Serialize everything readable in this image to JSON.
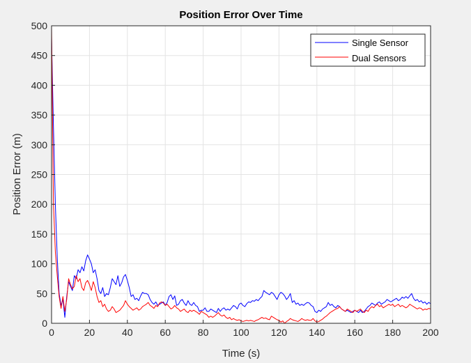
{
  "figure": {
    "background": "#f0f0f0",
    "axes_background": "#ffffff"
  },
  "chart_data": {
    "type": "line",
    "title": "Position Error Over Time",
    "xlabel": "Time (s)",
    "ylabel": "Position Error (m)",
    "xlim": [
      0,
      200
    ],
    "ylim": [
      0,
      500
    ],
    "xticks": [
      0,
      20,
      40,
      60,
      80,
      100,
      120,
      140,
      160,
      180,
      200
    ],
    "yticks": [
      0,
      50,
      100,
      150,
      200,
      250,
      300,
      350,
      400,
      450,
      500
    ],
    "grid": true,
    "legend_position": "top-right",
    "series": [
      {
        "name": "Single Sensor",
        "color": "#0000ff",
        "x": [
          0,
          1,
          2,
          3,
          4,
          5,
          6,
          7,
          8,
          9,
          10,
          11,
          12,
          13,
          14,
          15,
          16,
          17,
          18,
          19,
          20,
          21,
          22,
          23,
          24,
          25,
          26,
          27,
          28,
          29,
          30,
          31,
          32,
          33,
          34,
          35,
          36,
          37,
          38,
          39,
          40,
          41,
          42,
          43,
          44,
          45,
          46,
          47,
          48,
          49,
          50,
          51,
          52,
          53,
          54,
          55,
          56,
          57,
          58,
          59,
          60,
          61,
          62,
          63,
          64,
          65,
          66,
          67,
          68,
          69,
          70,
          71,
          72,
          73,
          74,
          75,
          76,
          77,
          78,
          79,
          80,
          81,
          82,
          83,
          84,
          85,
          86,
          87,
          88,
          89,
          90,
          91,
          92,
          93,
          94,
          95,
          96,
          97,
          98,
          99,
          100,
          101,
          102,
          103,
          104,
          105,
          106,
          107,
          108,
          109,
          110,
          111,
          112,
          113,
          114,
          115,
          116,
          117,
          118,
          119,
          120,
          121,
          122,
          123,
          124,
          125,
          126,
          127,
          128,
          129,
          130,
          131,
          132,
          133,
          134,
          135,
          136,
          137,
          138,
          139,
          140,
          141,
          142,
          143,
          144,
          145,
          146,
          147,
          148,
          149,
          150,
          151,
          152,
          153,
          154,
          155,
          156,
          157,
          158,
          159,
          160,
          161,
          162,
          163,
          164,
          165,
          166,
          167,
          168,
          169,
          170,
          171,
          172,
          173,
          174,
          175,
          176,
          177,
          178,
          179,
          180,
          181,
          182,
          183,
          184,
          185,
          186,
          187,
          188,
          189,
          190,
          191,
          192,
          193,
          194,
          195,
          196,
          197,
          198,
          199,
          200
        ],
        "y": [
          480,
          330,
          200,
          110,
          50,
          30,
          40,
          10,
          45,
          70,
          62,
          55,
          80,
          75,
          90,
          85,
          95,
          88,
          105,
          115,
          108,
          100,
          85,
          90,
          75,
          55,
          50,
          60,
          45,
          50,
          48,
          60,
          75,
          70,
          65,
          80,
          62,
          68,
          78,
          82,
          72,
          60,
          45,
          48,
          40,
          42,
          38,
          46,
          52,
          50,
          50,
          48,
          40,
          35,
          32,
          36,
          30,
          32,
          34,
          36,
          30,
          35,
          45,
          48,
          40,
          46,
          30,
          32,
          38,
          40,
          34,
          30,
          38,
          32,
          30,
          35,
          30,
          28,
          20,
          22,
          22,
          26,
          20,
          20,
          24,
          22,
          20,
          18,
          25,
          20,
          24,
          26,
          22,
          24,
          22,
          26,
          30,
          28,
          24,
          32,
          34,
          30,
          28,
          33,
          36,
          35,
          38,
          37,
          40,
          38,
          42,
          45,
          55,
          52,
          50,
          48,
          52,
          50,
          45,
          40,
          48,
          52,
          50,
          46,
          40,
          44,
          50,
          35,
          38,
          32,
          34,
          30,
          32,
          30,
          33,
          35,
          34,
          30,
          28,
          20,
          18,
          22,
          20,
          24,
          26,
          28,
          35,
          30,
          32,
          28,
          26,
          30,
          28,
          24,
          22,
          20,
          22,
          20,
          18,
          20,
          22,
          20,
          18,
          22,
          18,
          20,
          24,
          28,
          30,
          34,
          32,
          30,
          34,
          36,
          32,
          34,
          36,
          40,
          38,
          36,
          38,
          40,
          42,
          38,
          40,
          44,
          42,
          45,
          42,
          46,
          50,
          42,
          38,
          40,
          36,
          38,
          34,
          36,
          32,
          35,
          33
        ]
      },
      {
        "name": "Dual Sensors",
        "color": "#ff0000",
        "x": [
          0,
          1,
          2,
          3,
          4,
          5,
          6,
          7,
          8,
          9,
          10,
          11,
          12,
          13,
          14,
          15,
          16,
          17,
          18,
          19,
          20,
          21,
          22,
          23,
          24,
          25,
          26,
          27,
          28,
          29,
          30,
          31,
          32,
          33,
          34,
          35,
          36,
          37,
          38,
          39,
          40,
          41,
          42,
          43,
          44,
          45,
          46,
          47,
          48,
          49,
          50,
          51,
          52,
          53,
          54,
          55,
          56,
          57,
          58,
          59,
          60,
          61,
          62,
          63,
          64,
          65,
          66,
          67,
          68,
          69,
          70,
          71,
          72,
          73,
          74,
          75,
          76,
          77,
          78,
          79,
          80,
          81,
          82,
          83,
          84,
          85,
          86,
          87,
          88,
          89,
          90,
          91,
          92,
          93,
          94,
          95,
          96,
          97,
          98,
          99,
          100,
          101,
          102,
          103,
          104,
          105,
          106,
          107,
          108,
          109,
          110,
          111,
          112,
          113,
          114,
          115,
          116,
          117,
          118,
          119,
          120,
          121,
          122,
          123,
          124,
          125,
          126,
          127,
          128,
          129,
          130,
          131,
          132,
          133,
          134,
          135,
          136,
          137,
          138,
          139,
          140,
          141,
          142,
          143,
          144,
          145,
          146,
          147,
          148,
          149,
          150,
          151,
          152,
          153,
          154,
          155,
          156,
          157,
          158,
          159,
          160,
          161,
          162,
          163,
          164,
          165,
          166,
          167,
          168,
          169,
          170,
          171,
          172,
          173,
          174,
          175,
          176,
          177,
          178,
          179,
          180,
          181,
          182,
          183,
          184,
          185,
          186,
          187,
          188,
          189,
          190,
          191,
          192,
          193,
          194,
          195,
          196,
          197,
          198,
          199,
          200
        ],
        "y": [
          500,
          200,
          120,
          80,
          45,
          25,
          45,
          20,
          40,
          75,
          65,
          58,
          62,
          80,
          70,
          75,
          60,
          55,
          68,
          72,
          65,
          55,
          70,
          60,
          45,
          35,
          38,
          28,
          32,
          24,
          20,
          22,
          28,
          24,
          18,
          20,
          22,
          26,
          30,
          38,
          32,
          28,
          25,
          22,
          24,
          26,
          22,
          24,
          28,
          30,
          32,
          35,
          30,
          28,
          25,
          30,
          28,
          34,
          36,
          34,
          30,
          32,
          28,
          24,
          26,
          30,
          26,
          24,
          20,
          22,
          24,
          20,
          18,
          22,
          20,
          22,
          20,
          18,
          15,
          20,
          18,
          16,
          14,
          10,
          12,
          10,
          12,
          15,
          18,
          14,
          12,
          14,
          10,
          8,
          10,
          6,
          8,
          6,
          5,
          6,
          4,
          3,
          4,
          5,
          4,
          5,
          4,
          3,
          5,
          6,
          8,
          10,
          8,
          9,
          7,
          6,
          12,
          10,
          8,
          6,
          5,
          2,
          4,
          0,
          3,
          5,
          8,
          6,
          5,
          4,
          3,
          5,
          8,
          6,
          5,
          6,
          5,
          5,
          8,
          4,
          2,
          3,
          5,
          7,
          10,
          12,
          15,
          18,
          20,
          22,
          24,
          25,
          28,
          24,
          22,
          20,
          24,
          22,
          20,
          18,
          22,
          20,
          22,
          24,
          20,
          18,
          22,
          20,
          25,
          28,
          26,
          30,
          32,
          28,
          30,
          26,
          28,
          30,
          32,
          30,
          32,
          28,
          30,
          32,
          28,
          30,
          28,
          26,
          28,
          32,
          30,
          28,
          26,
          24,
          26,
          25,
          22,
          24,
          23,
          25,
          24
        ]
      }
    ]
  }
}
